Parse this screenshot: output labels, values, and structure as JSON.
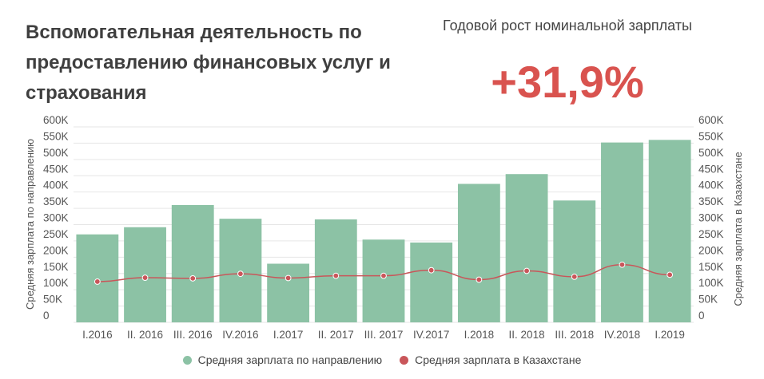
{
  "title": "Вспомогательная деятельность по предоставлению финансовых услуг и страхования",
  "kpi": {
    "label": "Годовой рост номинальной зарплаты",
    "value": "+31,9%"
  },
  "colors": {
    "bar": "#8cc2a5",
    "line": "#c9565a",
    "accent": "#d9534f",
    "grid": "#e6e6e6"
  },
  "chart_data": {
    "type": "bar",
    "title": "",
    "categories": [
      "I.2016",
      "II. 2016",
      "III. 2016",
      "IV.2016",
      "I.2017",
      "II. 2017",
      "III. 2017",
      "IV.2017",
      "I.2018",
      "II. 2018",
      "III. 2018",
      "IV.2018",
      "I.2019"
    ],
    "series": [
      {
        "name": "Средняя зарплата по направлению",
        "type": "bar",
        "axis": "left",
        "values": [
          270000,
          292000,
          360000,
          318000,
          180000,
          316000,
          254000,
          245000,
          425000,
          455000,
          374000,
          552000,
          560000
        ]
      },
      {
        "name": "Средняя зарплата в Казахстане",
        "type": "line",
        "axis": "right",
        "values": [
          125000,
          137000,
          135000,
          149000,
          136000,
          143000,
          143000,
          160000,
          131000,
          158000,
          140000,
          177000,
          146000
        ]
      }
    ],
    "ylabel_left": "Средняя зарплата по направлению",
    "ylabel_right": "Средняя зарплата в Казахстане",
    "ylim_left": [
      0,
      600000
    ],
    "ylim_right": [
      0,
      600000
    ],
    "yticks": [
      "0",
      "50K",
      "100K",
      "150K",
      "200K",
      "250K",
      "300K",
      "350K",
      "400K",
      "450K",
      "500K",
      "550K",
      "600K"
    ],
    "grid": true,
    "legend": "bottom-center"
  }
}
